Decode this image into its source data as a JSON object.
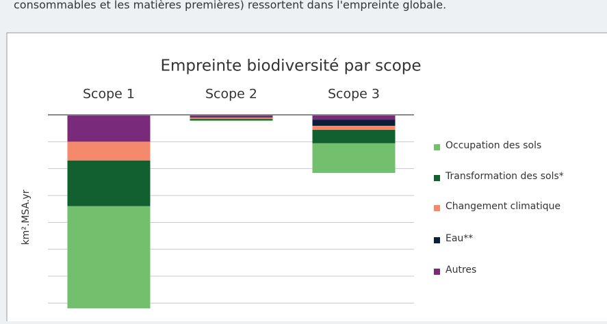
{
  "intro_text": "consommables et les matières premières) ressortent dans l'empreinte globale.",
  "chart_data": {
    "type": "stacked_bar",
    "title": "Empreinte biodiversité par scope",
    "y_label": "km².MSA.yr",
    "categories": [
      "Scope 1",
      "Scope 2",
      "Scope 3"
    ],
    "series": [
      {
        "name": "Occupation des sols",
        "color": "#72bf6e",
        "values": [
          3.8,
          0.03,
          1.1
        ]
      },
      {
        "name": "Transformation des sols*",
        "color": "#12602f",
        "values": [
          1.7,
          0.05,
          0.5
        ]
      },
      {
        "name": "Changement climatique",
        "color": "#f4896b",
        "values": [
          0.7,
          0.05,
          0.15
        ]
      },
      {
        "name": "Eau**",
        "color": "#0c1f3a",
        "values": [
          0,
          0.02,
          0.23
        ]
      },
      {
        "name": "Autres",
        "color": "#7a2a7a",
        "values": [
          1.0,
          0.08,
          0.18
        ]
      }
    ],
    "ylim": [
      0,
      7.5
    ],
    "yticks": [
      0,
      1,
      2,
      3,
      4,
      5,
      6,
      7
    ],
    "y_inverted": true,
    "grid": true,
    "legend": "right"
  }
}
